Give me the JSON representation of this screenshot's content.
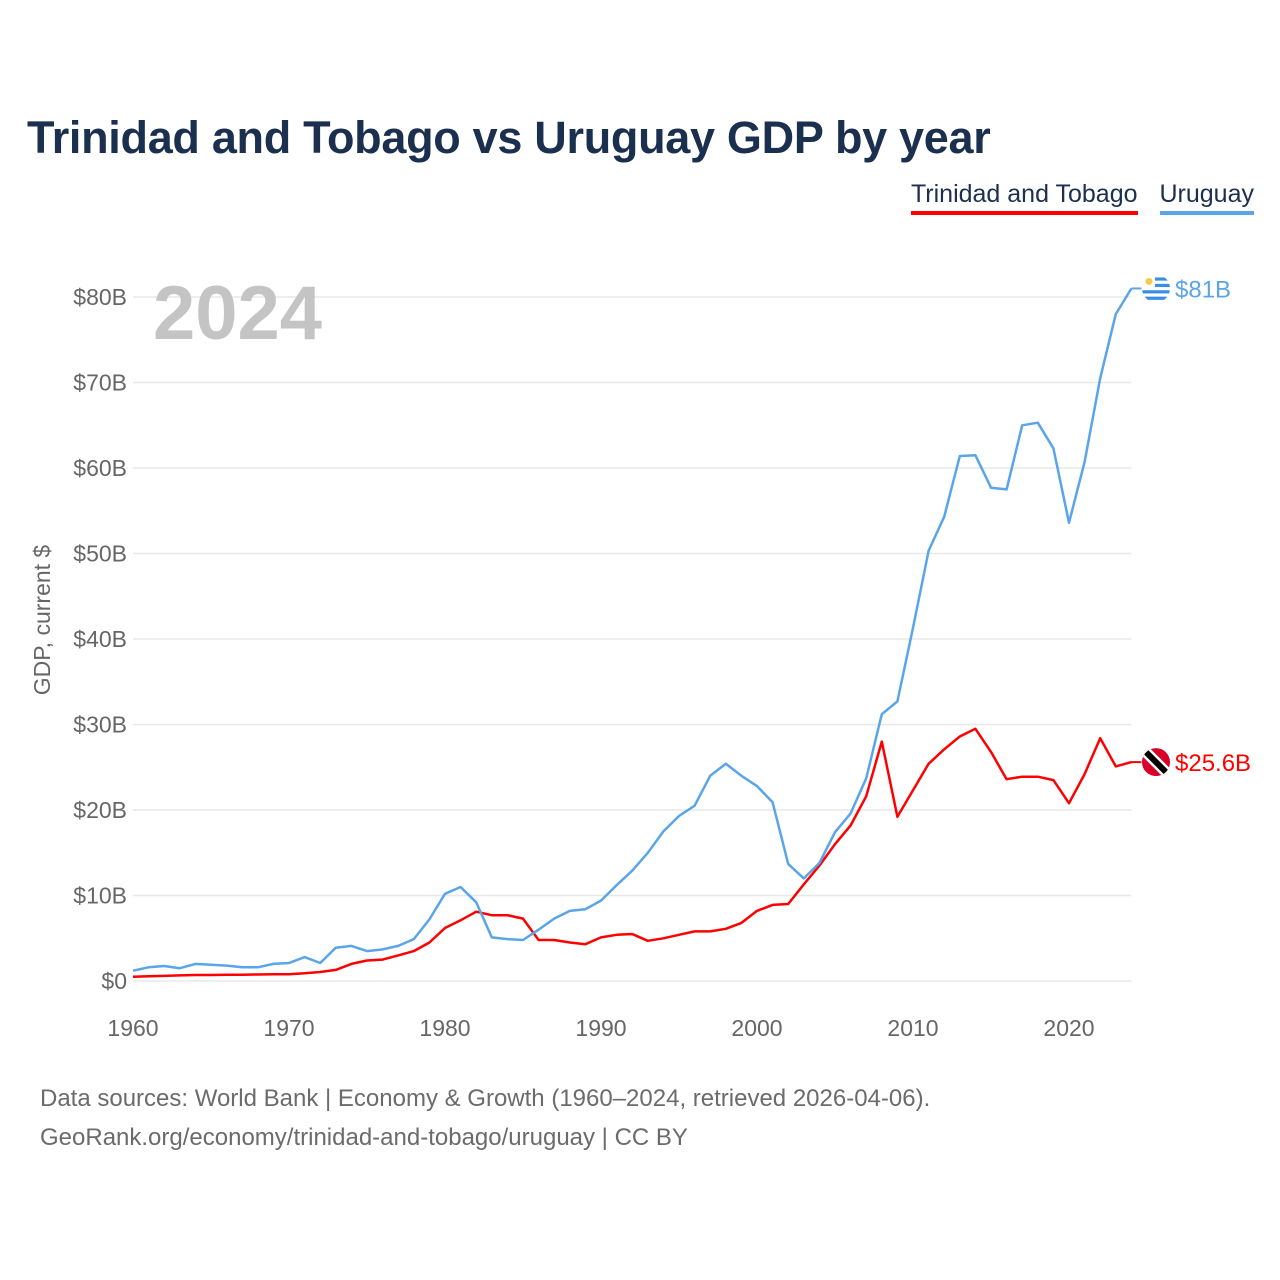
{
  "title": "Trinidad and Tobago vs Uruguay GDP by year",
  "footer": {
    "line1": "Data sources: World Bank | Economy & Growth (1960–2024, retrieved 2026-04-06).",
    "line2": "GeoRank.org/economy/trinidad-and-tobago/uruguay | CC BY"
  },
  "chart_data": {
    "type": "line",
    "title": "Trinidad and Tobago vs Uruguay GDP by year",
    "ylabel": "GDP, current $",
    "xlabel": "",
    "year_watermark": "2024",
    "xlim": [
      1960,
      2024
    ],
    "ylim": [
      0,
      80
    ],
    "x_ticks": [
      1960,
      1970,
      1980,
      1990,
      2000,
      2010,
      2020
    ],
    "x_tick_labels": [
      "1960",
      "1970",
      "1980",
      "1990",
      "2000",
      "2010",
      "2020"
    ],
    "y_ticks": [
      0,
      10,
      20,
      30,
      40,
      50,
      60,
      70,
      80
    ],
    "y_tick_labels": [
      "$0",
      "$10B",
      "$20B",
      "$30B",
      "$40B",
      "$50B",
      "$60B",
      "$70B",
      "$80B"
    ],
    "grid": true,
    "legend_placement": "top-right",
    "x": [
      1960,
      1961,
      1962,
      1963,
      1964,
      1965,
      1966,
      1967,
      1968,
      1969,
      1970,
      1971,
      1972,
      1973,
      1974,
      1975,
      1976,
      1977,
      1978,
      1979,
      1980,
      1981,
      1982,
      1983,
      1984,
      1985,
      1986,
      1987,
      1988,
      1989,
      1990,
      1991,
      1992,
      1993,
      1994,
      1995,
      1996,
      1997,
      1998,
      1999,
      2000,
      2001,
      2002,
      2003,
      2004,
      2005,
      2006,
      2007,
      2008,
      2009,
      2010,
      2011,
      2012,
      2013,
      2014,
      2015,
      2016,
      2017,
      2018,
      2019,
      2020,
      2021,
      2022,
      2023,
      2024
    ],
    "series": [
      {
        "name": "Trinidad and Tobago",
        "color": "#ff0000",
        "end_label": "$25.6B",
        "flag": "trinidad-and-tobago-flag-icon",
        "values": [
          0.5,
          0.55,
          0.6,
          0.65,
          0.7,
          0.7,
          0.72,
          0.74,
          0.76,
          0.78,
          0.8,
          0.9,
          1.05,
          1.3,
          2.0,
          2.4,
          2.5,
          3.0,
          3.5,
          4.5,
          6.2,
          7.1,
          8.1,
          7.7,
          7.7,
          7.3,
          4.8,
          4.8,
          4.5,
          4.3,
          5.1,
          5.4,
          5.5,
          4.7,
          5.0,
          5.4,
          5.8,
          5.8,
          6.1,
          6.8,
          8.2,
          8.9,
          9.0,
          11.3,
          13.5,
          16.0,
          18.2,
          21.6,
          28.0,
          19.2,
          22.3,
          25.4,
          27.1,
          28.6,
          29.5,
          26.8,
          23.6,
          23.9,
          23.9,
          23.5,
          20.8,
          24.2,
          28.4,
          25.1,
          25.6
        ]
      },
      {
        "name": "Uruguay",
        "color": "#5aa5ea",
        "end_label": "$81B",
        "flag": "uruguay-flag-icon",
        "values": [
          1.2,
          1.6,
          1.75,
          1.5,
          2.0,
          1.9,
          1.8,
          1.6,
          1.6,
          2.0,
          2.1,
          2.8,
          2.1,
          3.9,
          4.1,
          3.5,
          3.7,
          4.1,
          4.9,
          7.2,
          10.2,
          11.0,
          9.2,
          5.1,
          4.9,
          4.8,
          6.0,
          7.3,
          8.2,
          8.4,
          9.4,
          11.2,
          12.9,
          15.0,
          17.5,
          19.3,
          20.5,
          24.0,
          25.4,
          24.0,
          22.8,
          20.9,
          13.7,
          12.0,
          13.8,
          17.4,
          19.6,
          23.7,
          31.2,
          32.7,
          41.3,
          50.3,
          54.3,
          61.4,
          61.5,
          57.7,
          57.5,
          65.0,
          65.3,
          62.3,
          53.6,
          60.7,
          70.5,
          78.0,
          81.0
        ]
      }
    ]
  }
}
